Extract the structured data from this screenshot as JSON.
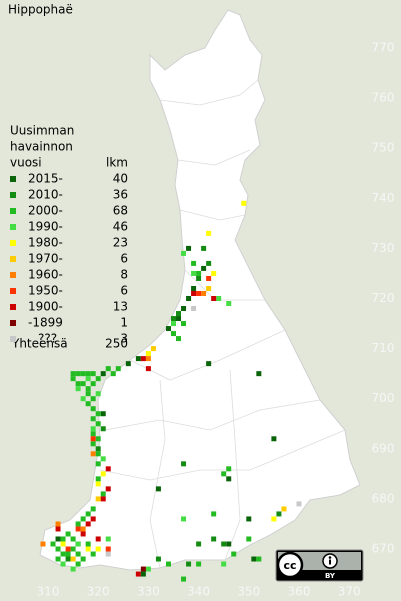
{
  "title": "Hippophaë",
  "legend": {
    "heading": [
      "Uusimman",
      "havainnon",
      "vuosi"
    ],
    "count_heading": "lkm",
    "items": [
      {
        "label": "2015-",
        "count": 40,
        "color": "#0a640a",
        "squares": [
          [
            338,
            730
          ],
          [
            341,
            726
          ],
          [
            342,
            707
          ],
          [
            346,
            684
          ],
          [
            332,
            682
          ],
          [
            346,
            671
          ],
          [
            355,
            692
          ],
          [
            352,
            705
          ],
          [
            350,
            676
          ],
          [
            329,
            665
          ],
          [
            351,
            668
          ],
          [
            312,
            672
          ],
          [
            334,
            714
          ],
          [
            336,
            716
          ],
          [
            337,
            718
          ],
          [
            338,
            720
          ],
          [
            339,
            722
          ],
          [
            326,
            707
          ],
          [
            328,
            708
          ],
          [
            321,
            705
          ],
          [
            321,
            697
          ]
        ]
      },
      {
        "label": "2010-",
        "count": 36,
        "color": "#148c14",
        "squares": [
          [
            335,
            716
          ],
          [
            336,
            717
          ],
          [
            340,
            724
          ],
          [
            342,
            727
          ],
          [
            337,
            687
          ],
          [
            343,
            672
          ],
          [
            321,
            694
          ],
          [
            320,
            690
          ],
          [
            316,
            671
          ],
          [
            314,
            668
          ],
          [
            338,
            667
          ],
          [
            332,
            668
          ],
          [
            341,
            730
          ],
          [
            340,
            671
          ],
          [
            356,
            677
          ],
          [
            345,
            671
          ]
        ]
      },
      {
        "label": "2000-",
        "count": 68,
        "color": "#22bb22",
        "squares": [
          [
            315,
            705
          ],
          [
            316,
            705
          ],
          [
            317,
            705
          ],
          [
            318,
            705
          ],
          [
            319,
            705
          ],
          [
            320,
            704
          ],
          [
            315,
            704
          ],
          [
            316,
            703
          ],
          [
            317,
            703
          ],
          [
            318,
            702
          ],
          [
            319,
            703
          ],
          [
            318,
            701
          ],
          [
            319,
            700
          ],
          [
            318,
            699
          ],
          [
            319,
            698
          ],
          [
            320,
            697
          ],
          [
            319,
            696
          ],
          [
            320,
            695
          ],
          [
            319,
            693
          ],
          [
            320,
            692
          ],
          [
            319,
            691
          ],
          [
            320,
            689
          ],
          [
            320,
            687
          ],
          [
            320,
            684
          ],
          [
            321,
            681
          ],
          [
            319,
            678
          ],
          [
            318,
            677
          ],
          [
            317,
            676
          ],
          [
            316,
            675
          ],
          [
            314,
            673
          ],
          [
            315,
            672
          ],
          [
            313,
            672
          ],
          [
            311,
            671
          ],
          [
            312,
            670
          ],
          [
            313,
            669
          ],
          [
            314,
            669
          ],
          [
            315,
            670
          ],
          [
            316,
            669
          ],
          [
            317,
            668
          ],
          [
            316,
            667
          ],
          [
            318,
            671
          ],
          [
            312,
            668
          ],
          [
            319,
            669
          ],
          [
            322,
            706
          ],
          [
            323,
            705
          ],
          [
            324,
            706
          ],
          [
            336,
            712
          ],
          [
            335,
            713
          ],
          [
            337,
            715
          ],
          [
            340,
            725
          ],
          [
            339,
            727
          ],
          [
            346,
            686
          ],
          [
            343,
            677
          ],
          [
            345,
            685
          ],
          [
            350,
            672
          ],
          [
            352,
            668
          ],
          [
            347,
            669
          ],
          [
            337,
            664
          ],
          [
            334,
            667
          ],
          [
            340,
            667
          ]
        ]
      },
      {
        "label": "1990-",
        "count": 46,
        "color": "#44dd44",
        "squares": [
          [
            344,
            720
          ],
          [
            337,
            729
          ],
          [
            337,
            676
          ],
          [
            346,
            719
          ],
          [
            316,
            702
          ],
          [
            318,
            704
          ],
          [
            317,
            700
          ],
          [
            320,
            701
          ],
          [
            319,
            694
          ],
          [
            321,
            688
          ],
          [
            322,
            672
          ],
          [
            313,
            667
          ],
          [
            316,
            671
          ],
          [
            315,
            666
          ],
          [
            330,
            666
          ],
          [
            345,
            667
          ],
          [
            335,
            715
          ],
          [
            339,
            725
          ]
        ]
      },
      {
        "label": "1980-",
        "count": 23,
        "color": "#ffff00",
        "squares": [
          [
            349,
            739
          ],
          [
            342,
            733
          ],
          [
            343,
            725
          ],
          [
            330,
            709
          ],
          [
            321,
            685
          ],
          [
            320,
            683
          ],
          [
            313,
            671
          ],
          [
            355,
            676
          ],
          [
            318,
            670
          ],
          [
            320,
            670
          ]
        ]
      },
      {
        "label": "1970-",
        "count": 6,
        "color": "#ffcc00",
        "squares": [
          [
            342,
            722
          ],
          [
            331,
            710
          ],
          [
            320,
            680
          ],
          [
            315,
            668
          ],
          [
            357,
            678
          ]
        ]
      },
      {
        "label": "1960-",
        "count": 8,
        "color": "#ff8000",
        "squares": [
          [
            330,
            708
          ],
          [
            341,
            721
          ],
          [
            319,
            689
          ],
          [
            312,
            675
          ],
          [
            317,
            674
          ],
          [
            309,
            671
          ]
        ]
      },
      {
        "label": "1950-",
        "count": 6,
        "color": "#ff3300",
        "squares": [
          [
            340,
            721
          ],
          [
            319,
            692
          ],
          [
            316,
            674
          ],
          [
            322,
            670
          ],
          [
            342,
            724
          ],
          [
            314,
            670
          ]
        ]
      },
      {
        "label": "1900-",
        "count": 13,
        "color": "#cc0000",
        "squares": [
          [
            322,
            682
          ],
          [
            322,
            686
          ],
          [
            329,
            708
          ],
          [
            318,
            675
          ],
          [
            317,
            673
          ],
          [
            312,
            674
          ],
          [
            328,
            665
          ],
          [
            320,
            672
          ],
          [
            339,
            721
          ],
          [
            343,
            720
          ],
          [
            330,
            706
          ],
          [
            319,
            676
          ],
          [
            321,
            680
          ]
        ]
      },
      {
        "label": "-1899",
        "count": 1,
        "color": "#800000",
        "squares": [
          [
            329,
            666
          ]
        ]
      },
      {
        "label": "???",
        "count": 3,
        "color": "#c8c8c8",
        "squares": [
          [
            339,
            718
          ],
          [
            360,
            679
          ],
          [
            322,
            669
          ]
        ]
      }
    ],
    "total_label": "Yhteensä",
    "total": 250
  },
  "axes": {
    "x_ticks": [
      310,
      320,
      330,
      340,
      350,
      360,
      370
    ],
    "y_ticks": [
      770,
      760,
      750,
      740,
      730,
      720,
      710,
      700,
      690,
      680,
      670
    ]
  },
  "license": {
    "cc": "cc",
    "by": "BY"
  }
}
